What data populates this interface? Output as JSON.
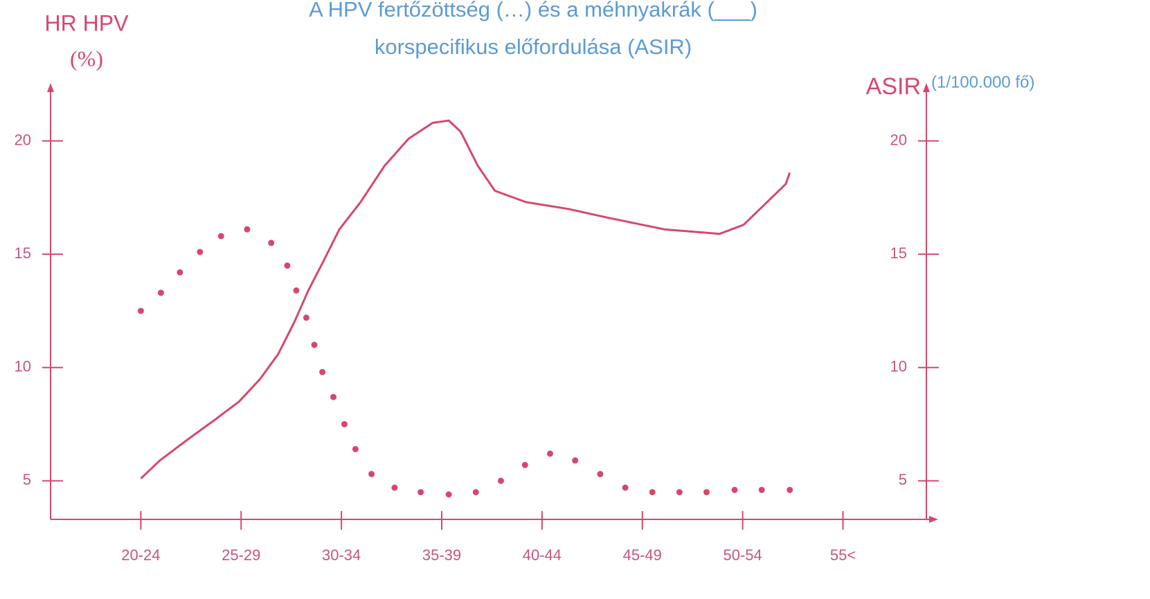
{
  "chart_data": {
    "type": "line",
    "title": [
      "A HPV fertőzöttség (…) és a méhnyakrák (___)",
      "korspecifikus előfordulása (ASIR)"
    ],
    "y_label": [
      "HR HPV",
      "(%)"
    ],
    "y2_label": "ASIR",
    "y2_unit": "(1/100.000 fő)",
    "xlim": [
      -0.9,
      7.88
    ],
    "xticks": [
      {
        "value": 0,
        "label": "20-24"
      },
      {
        "value": 1,
        "label": "25-29"
      },
      {
        "value": 2,
        "label": "30-34"
      },
      {
        "value": 3,
        "label": "35-39"
      },
      {
        "value": 4,
        "label": "40-44"
      },
      {
        "value": 5,
        "label": "45-49"
      },
      {
        "value": 6,
        "label": "50-54"
      },
      {
        "value": 7,
        "label": "55<"
      }
    ],
    "ylim": [
      3.3,
      22.4
    ],
    "yticks": [
      5,
      10,
      15,
      20
    ],
    "y2lim": [
      3.3,
      22.4
    ],
    "y2ticks": [
      5,
      10,
      15,
      20
    ],
    "series": [
      {
        "style": "dotted",
        "color": "#d6476e",
        "x": [
          0,
          0.2,
          0.39,
          0.59,
          0.8,
          1.06,
          1.3,
          1.46,
          1.55,
          1.65,
          1.73,
          1.81,
          1.92,
          2.03,
          2.14,
          2.3,
          2.53,
          2.79,
          3.07,
          3.34,
          3.59,
          3.83,
          4.08,
          4.33,
          4.58,
          4.83,
          5.1,
          5.37,
          5.64,
          5.92,
          6.19,
          6.47
        ],
        "values": [
          12.5,
          13.3,
          14.2,
          15.1,
          15.8,
          16.1,
          15.5,
          14.5,
          13.4,
          12.2,
          11.0,
          9.8,
          8.7,
          7.5,
          6.4,
          5.3,
          4.7,
          4.5,
          4.4,
          4.5,
          5.0,
          5.7,
          6.2,
          5.9,
          5.3,
          4.7,
          4.5,
          4.5,
          4.5,
          4.6,
          4.6,
          4.6
        ]
      },
      {
        "style": "solid",
        "color": "#d6476e",
        "axis": "y2",
        "x": [
          0,
          0.19,
          0.46,
          0.74,
          0.98,
          1.19,
          1.37,
          1.53,
          1.67,
          1.81,
          1.98,
          2.19,
          2.43,
          2.67,
          2.91,
          3.07,
          3.19,
          3.36,
          3.53,
          3.84,
          4.26,
          4.67,
          5.22,
          5.77,
          6.01,
          6.22,
          6.43,
          6.47
        ],
        "values": [
          5.1,
          5.9,
          6.8,
          7.7,
          8.5,
          9.5,
          10.6,
          12.0,
          13.4,
          14.6,
          16.1,
          17.3,
          18.9,
          20.1,
          20.8,
          20.9,
          20.4,
          18.9,
          17.8,
          17.3,
          17.0,
          16.6,
          16.1,
          15.9,
          16.3,
          17.2,
          18.1,
          18.6
        ]
      }
    ]
  }
}
